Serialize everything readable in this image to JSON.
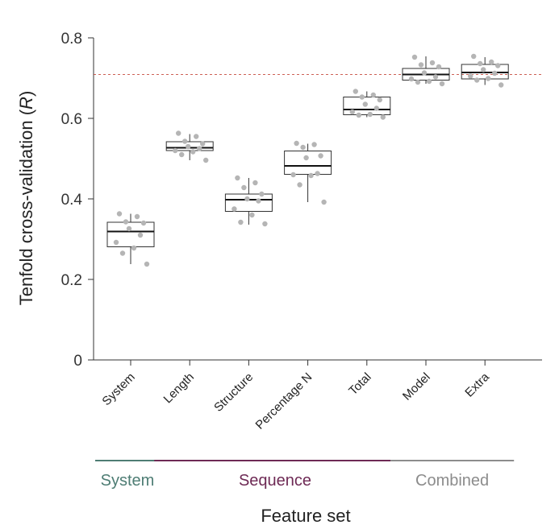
{
  "chart_data": {
    "type": "box",
    "ylabel_prefix": "Tenfold cross-validation (",
    "ylabel_italic": "R",
    "ylabel_suffix": ")",
    "xlabel": "Feature set",
    "ylim": [
      0,
      0.8
    ],
    "yticks": [
      {
        "value": 0,
        "label": "0"
      },
      {
        "value": 0.2,
        "label": "0.2"
      },
      {
        "value": 0.4,
        "label": "0.4"
      },
      {
        "value": 0.6,
        "label": "0.6"
      },
      {
        "value": 0.8,
        "label": "0.8"
      }
    ],
    "reference_line": {
      "value": 0.709,
      "color": "#c0392b",
      "style": "dashed"
    },
    "box_color": "#333333",
    "point_color": "#b5b5b5",
    "categories": [
      "System",
      "Length",
      "Structure",
      "Percentage N",
      "Total",
      "Model",
      "Extra"
    ],
    "boxes": [
      {
        "category": "System",
        "whisker_low": 0.238,
        "q1": 0.281,
        "median": 0.319,
        "q3": 0.342,
        "whisker_high": 0.363,
        "points": [
          0.363,
          0.356,
          0.343,
          0.34,
          0.326,
          0.31,
          0.292,
          0.278,
          0.265,
          0.238
        ]
      },
      {
        "category": "Length",
        "whisker_low": 0.496,
        "q1": 0.52,
        "median": 0.527,
        "q3": 0.542,
        "whisker_high": 0.561,
        "points": [
          0.563,
          0.555,
          0.543,
          0.537,
          0.53,
          0.525,
          0.52,
          0.517,
          0.51,
          0.496
        ]
      },
      {
        "category": "Structure",
        "whisker_low": 0.336,
        "q1": 0.369,
        "median": 0.398,
        "q3": 0.412,
        "whisker_high": 0.452,
        "points": [
          0.452,
          0.44,
          0.428,
          0.412,
          0.4,
          0.395,
          0.375,
          0.36,
          0.342,
          0.338
        ]
      },
      {
        "category": "Percentage N",
        "whisker_low": 0.392,
        "q1": 0.461,
        "median": 0.482,
        "q3": 0.519,
        "whisker_high": 0.537,
        "points": [
          0.538,
          0.535,
          0.528,
          0.507,
          0.502,
          0.463,
          0.46,
          0.458,
          0.435,
          0.392
        ]
      },
      {
        "category": "Total",
        "whisker_low": 0.603,
        "q1": 0.609,
        "median": 0.622,
        "q3": 0.653,
        "whisker_high": 0.667,
        "points": [
          0.667,
          0.658,
          0.653,
          0.646,
          0.635,
          0.625,
          0.616,
          0.61,
          0.608,
          0.603
        ]
      },
      {
        "category": "Model",
        "whisker_low": 0.686,
        "q1": 0.695,
        "median": 0.709,
        "q3": 0.724,
        "whisker_high": 0.754,
        "points": [
          0.752,
          0.738,
          0.733,
          0.728,
          0.713,
          0.703,
          0.698,
          0.692,
          0.69,
          0.686
        ]
      },
      {
        "category": "Extra",
        "whisker_low": 0.683,
        "q1": 0.698,
        "median": 0.714,
        "q3": 0.734,
        "whisker_high": 0.752,
        "points": [
          0.754,
          0.74,
          0.736,
          0.731,
          0.721,
          0.712,
          0.705,
          0.699,
          0.695,
          0.683
        ]
      }
    ],
    "groups": [
      {
        "label": "System",
        "color": "#4e7d74",
        "from": "System",
        "to": "System"
      },
      {
        "label": "Sequence",
        "color": "#6e2a55",
        "from": "Length",
        "to": "Total"
      },
      {
        "label": "Combined",
        "color": "#8c8c8c",
        "from": "Model",
        "to": "Extra"
      }
    ]
  }
}
